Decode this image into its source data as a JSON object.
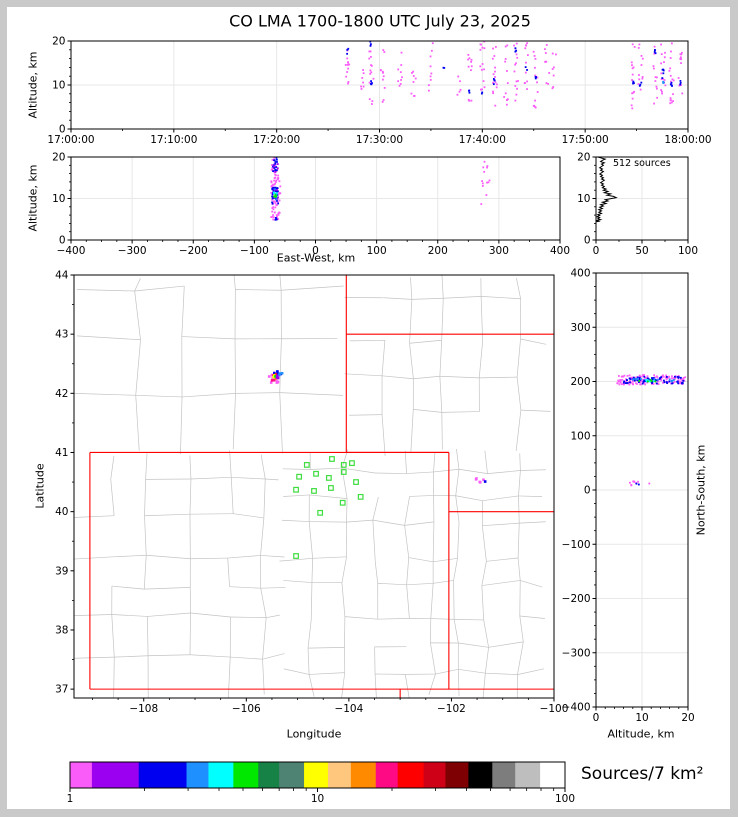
{
  "labels": {
    "title": "CO LMA 1700-1800 UTC July 23, 2025",
    "altitude": "Altitude, km",
    "east_west": "East-West, km",
    "latitude": "Latitude",
    "longitude": "Longitude",
    "north_south": "North-South, km",
    "annotation": "512 sources",
    "colorbar": "Sources/7 km²"
  },
  "palette": {
    "violet": "#F95CF9",
    "purple": "#9B00F0",
    "blue": "#0000F0",
    "dodger": "#1E90FF",
    "cyan": "#00FFFF",
    "green": "#00E800",
    "seagreen": "#178245",
    "teal": "#4E8273",
    "yellow": "#FFFF00",
    "sandy": "#FFC77E",
    "orange": "#FF8A00",
    "deeppink": "#FF0A85",
    "red": "#FF0000",
    "crimson": "#CE0018",
    "darkred": "#7E0002",
    "black": "#000000",
    "gray": "#7D7D7D",
    "silver": "#BEBEBE",
    "white": "#FFFFFF",
    "station": "#3FDD3F",
    "state_border": "#FF0000",
    "county_line": "#C3C3C3",
    "gridline": "#E7E7E7",
    "histogram_line": "#000000"
  },
  "colorbar": {
    "label": "Sources/7 km²",
    "scale": "log",
    "range": [
      1,
      100
    ],
    "tick_values": [
      1,
      10,
      100
    ],
    "tick_labels": [
      "1",
      "10",
      "100"
    ],
    "minor_values": [
      2,
      3,
      4,
      5,
      6,
      7,
      8,
      9,
      20,
      30,
      40,
      50,
      60,
      70,
      80,
      90
    ],
    "segments": [
      {
        "color": "violet",
        "w": 22
      },
      {
        "color": "purple",
        "w": 47
      },
      {
        "color": "blue",
        "w": 48
      },
      {
        "color": "dodger",
        "w": 22
      },
      {
        "color": "cyan",
        "w": 25
      },
      {
        "color": "green",
        "w": 25
      },
      {
        "color": "seagreen",
        "w": 21
      },
      {
        "color": "teal",
        "w": 25
      },
      {
        "color": "yellow",
        "w": 24
      },
      {
        "color": "sandy",
        "w": 23
      },
      {
        "color": "orange",
        "w": 25
      },
      {
        "color": "deeppink",
        "w": 22
      },
      {
        "color": "red",
        "w": 26
      },
      {
        "color": "crimson",
        "w": 22
      },
      {
        "color": "darkred",
        "w": 23
      },
      {
        "color": "black",
        "w": 24
      },
      {
        "color": "gray",
        "w": 23
      },
      {
        "color": "silver",
        "w": 25
      },
      {
        "color": "white",
        "w": 25
      }
    ]
  },
  "chart_data": [
    {
      "id": "time_altitude",
      "type": "scatter",
      "seed": 11,
      "ylabel": "Altitude, km",
      "xlim": [
        0,
        60
      ],
      "ylim": [
        0,
        20
      ],
      "xtick_values": [
        0,
        10,
        20,
        30,
        40,
        50,
        60
      ],
      "xtick_labels": [
        "17:00:00",
        "17:10:00",
        "17:20:00",
        "17:30:00",
        "17:40:00",
        "17:50:00",
        "18:00:00"
      ],
      "ytick_values": [
        0,
        10,
        20
      ],
      "ytick_labels": [
        "0",
        "10",
        "20"
      ],
      "x_minor": 5,
      "y_minor": 2,
      "grid_x": [
        10,
        20,
        30,
        40,
        50
      ],
      "grid_y": [
        10
      ],
      "clusters": [
        [
          26.9,
          0.22,
          9,
          19.5,
          13,
          "violet"
        ],
        [
          26.9,
          0.1,
          17,
          18.6,
          3,
          "blue"
        ],
        [
          28.3,
          0.22,
          9,
          13.5,
          7,
          "violet"
        ],
        [
          29.2,
          0.22,
          5,
          20,
          16,
          "violet"
        ],
        [
          29.2,
          0.1,
          9.5,
          11,
          4,
          "blue"
        ],
        [
          29.2,
          0.1,
          18.8,
          20,
          3,
          "blue"
        ],
        [
          30.3,
          0.22,
          4.8,
          18,
          11,
          "violet"
        ],
        [
          32.0,
          0.22,
          8,
          18,
          9,
          "violet"
        ],
        [
          33.3,
          0.22,
          7.5,
          14,
          8,
          "violet"
        ],
        [
          35.0,
          0.22,
          8,
          19.7,
          9,
          "violet"
        ],
        [
          36.2,
          0.1,
          13.7,
          14.3,
          2,
          "blue"
        ],
        [
          37.8,
          0.22,
          7,
          13,
          5,
          "violet"
        ],
        [
          38.8,
          0.22,
          5,
          19.5,
          11,
          "violet"
        ],
        [
          38.8,
          0.1,
          8,
          9.2,
          3,
          "blue"
        ],
        [
          40.0,
          0.22,
          7.8,
          20,
          14,
          "violet"
        ],
        [
          40.0,
          0.1,
          8,
          8.8,
          2,
          "blue"
        ],
        [
          41.2,
          0.22,
          5,
          19.8,
          16,
          "violet"
        ],
        [
          41.2,
          0.1,
          10,
          11.5,
          4,
          "blue"
        ],
        [
          42.3,
          0.22,
          4.8,
          19.5,
          12,
          "violet"
        ],
        [
          43.3,
          0.22,
          5,
          19.8,
          14,
          "violet"
        ],
        [
          43.3,
          0.1,
          17.5,
          19,
          3,
          "blue"
        ],
        [
          44.3,
          0.22,
          9,
          20,
          11,
          "violet"
        ],
        [
          44.3,
          0.1,
          13.4,
          14.2,
          2,
          "blue"
        ],
        [
          45.2,
          0.22,
          4.8,
          19.5,
          13,
          "violet"
        ],
        [
          45.2,
          0.1,
          11,
          12.2,
          3,
          "blue"
        ],
        [
          46.3,
          0.22,
          8,
          19.5,
          9,
          "violet"
        ],
        [
          47.0,
          0.22,
          9,
          18,
          7,
          "violet"
        ],
        [
          54.7,
          0.22,
          4.5,
          19.7,
          14,
          "violet"
        ],
        [
          54.7,
          0.1,
          9,
          11,
          4,
          "blue"
        ],
        [
          55.4,
          0.22,
          8.5,
          20,
          11,
          "violet"
        ],
        [
          55.4,
          0.1,
          9.5,
          10.6,
          3,
          "blue"
        ],
        [
          56.8,
          0.22,
          5,
          19.5,
          11,
          "violet"
        ],
        [
          56.8,
          0.1,
          17,
          19.2,
          4,
          "blue"
        ],
        [
          57.6,
          0.22,
          8,
          20,
          14,
          "violet"
        ],
        [
          57.6,
          0.1,
          10,
          14,
          6,
          "blue"
        ],
        [
          57.6,
          0.08,
          10.3,
          11,
          2,
          "dodger"
        ],
        [
          58.4,
          0.22,
          4.7,
          19.8,
          16,
          "violet"
        ],
        [
          58.4,
          0.1,
          9,
          10.6,
          4,
          "blue"
        ],
        [
          59.3,
          0.22,
          8,
          20,
          12,
          "violet"
        ],
        [
          59.3,
          0.1,
          10,
          11.2,
          3,
          "blue"
        ]
      ]
    },
    {
      "id": "east_west_altitude",
      "type": "scatter",
      "seed": 22,
      "xlabel": "East-West, km",
      "ylabel": "Altitude, km",
      "xlim": [
        -400,
        400
      ],
      "ylim": [
        0,
        20
      ],
      "xtick_values": [
        -400,
        -300,
        -200,
        -100,
        0,
        100,
        200,
        300,
        400
      ],
      "xtick_labels": [
        "−400",
        "−300",
        "−200",
        "−100",
        "0",
        "100",
        "200",
        "300",
        "400"
      ],
      "ytick_values": [
        0,
        10,
        20
      ],
      "ytick_labels": [
        "0",
        "10",
        "20"
      ],
      "x_minor": 25,
      "y_minor": 2,
      "grid_x": [
        -300,
        -200,
        -100,
        0,
        100,
        200,
        300
      ],
      "grid_y": [
        10
      ],
      "clusters": [
        [
          -65,
          7.5,
          4.8,
          20,
          95,
          "violet"
        ],
        [
          -66,
          5,
          8.5,
          13,
          30,
          "blue"
        ],
        [
          -66,
          4,
          16.5,
          20,
          15,
          "blue"
        ],
        [
          -64,
          3,
          4.7,
          5.6,
          4,
          "blue"
        ],
        [
          -66,
          5,
          9,
          19,
          10,
          "purple"
        ],
        [
          -65,
          4,
          9.5,
          12.5,
          6,
          "dodger"
        ],
        [
          -66,
          3,
          10,
          11.6,
          5,
          "cyan"
        ],
        [
          -66,
          2,
          10.2,
          11.2,
          4,
          "green"
        ],
        [
          278,
          7,
          8.3,
          19,
          13,
          "violet"
        ]
      ]
    },
    {
      "id": "source_histogram",
      "type": "line",
      "seed": 33,
      "annotation": "512 sources",
      "xlim": [
        0,
        100
      ],
      "ylim": [
        0,
        20
      ],
      "xtick_values": [
        0,
        50,
        100
      ],
      "xtick_labels": [
        "0",
        "50",
        "100"
      ],
      "ytick_values": [
        0,
        10,
        20
      ],
      "ytick_labels": [
        "0",
        "10",
        "20"
      ],
      "x_minor": 25,
      "y_minor": 2,
      "grid_x": [
        50
      ],
      "grid_y": [
        10
      ],
      "profile": [
        [
          4.4,
          0
        ],
        [
          4.5,
          3
        ],
        [
          4.7,
          1
        ],
        [
          4.9,
          5
        ],
        [
          5.1,
          2
        ],
        [
          5.4,
          4
        ],
        [
          5.6,
          1
        ],
        [
          5.9,
          4
        ],
        [
          6.1,
          2
        ],
        [
          6.4,
          6
        ],
        [
          6.7,
          3
        ],
        [
          7.0,
          6
        ],
        [
          7.3,
          3
        ],
        [
          7.6,
          7
        ],
        [
          7.9,
          4
        ],
        [
          8.2,
          8
        ],
        [
          8.5,
          5
        ],
        [
          8.8,
          11
        ],
        [
          9.1,
          7
        ],
        [
          9.4,
          13
        ],
        [
          9.7,
          10
        ],
        [
          10.0,
          17
        ],
        [
          10.2,
          22
        ],
        [
          10.5,
          19
        ],
        [
          10.8,
          12
        ],
        [
          11.1,
          16
        ],
        [
          11.4,
          9
        ],
        [
          11.7,
          13
        ],
        [
          12.0,
          8
        ],
        [
          12.3,
          11
        ],
        [
          12.6,
          7
        ],
        [
          12.9,
          9
        ],
        [
          13.2,
          6
        ],
        [
          13.5,
          8
        ],
        [
          13.8,
          5
        ],
        [
          14.1,
          7
        ],
        [
          14.4,
          9
        ],
        [
          14.7,
          6
        ],
        [
          15.0,
          8
        ],
        [
          15.3,
          5
        ],
        [
          15.6,
          7
        ],
        [
          15.9,
          4
        ],
        [
          16.2,
          6
        ],
        [
          16.5,
          8
        ],
        [
          16.8,
          5
        ],
        [
          17.1,
          7
        ],
        [
          17.4,
          4
        ],
        [
          17.7,
          6
        ],
        [
          18.0,
          8
        ],
        [
          18.3,
          6
        ],
        [
          18.6,
          9
        ],
        [
          18.9,
          5
        ],
        [
          19.2,
          7
        ],
        [
          19.5,
          10
        ],
        [
          19.8,
          5
        ],
        [
          20.0,
          2
        ]
      ]
    },
    {
      "id": "map",
      "type": "map-scatter",
      "seed": 44,
      "xlabel": "Longitude",
      "ylabel": "Latitude",
      "xlim": [
        -109.36,
        -100
      ],
      "ylim": [
        36.85,
        44
      ],
      "xtick_values": [
        -108,
        -106,
        -104,
        -102,
        -100
      ],
      "xtick_labels": [
        "−108",
        "−106",
        "−104",
        "−102",
        "−100"
      ],
      "ytick_values": [
        37,
        38,
        39,
        40,
        41,
        42,
        43,
        44
      ],
      "ytick_labels": [
        "37",
        "38",
        "39",
        "40",
        "41",
        "42",
        "43",
        "44"
      ],
      "x_minor": 0.5,
      "y_minor": 0.5,
      "state_borders": [
        [
          -109.05,
          37,
          -109.05,
          41
        ],
        [
          -109.05,
          41,
          -102.05,
          41
        ],
        [
          -102.05,
          41,
          -102.05,
          37
        ],
        [
          -109.05,
          37,
          -100,
          37
        ],
        [
          -104.05,
          44,
          -104.05,
          41
        ],
        [
          -104.05,
          41,
          -102.05,
          41
        ],
        [
          -104.05,
          43,
          -100,
          43
        ],
        [
          -102.05,
          40,
          -100,
          40
        ],
        [
          -103.0,
          37,
          -103.0,
          36.85
        ]
      ],
      "stations": [
        [
          -104.33,
          40.89
        ],
        [
          -104.1,
          40.79
        ],
        [
          -103.94,
          40.82
        ],
        [
          -104.82,
          40.79
        ],
        [
          -104.1,
          40.67
        ],
        [
          -104.97,
          40.59
        ],
        [
          -104.64,
          40.64
        ],
        [
          -104.39,
          40.57
        ],
        [
          -103.86,
          40.5
        ],
        [
          -105.03,
          40.37
        ],
        [
          -104.68,
          40.35
        ],
        [
          -104.35,
          40.4
        ],
        [
          -103.77,
          40.25
        ],
        [
          -104.12,
          40.15
        ],
        [
          -104.56,
          39.98
        ],
        [
          -105.03,
          39.25
        ]
      ],
      "clusters": [
        [
          -105.47,
          0.1,
          42.18,
          42.31,
          13,
          "violet"
        ],
        [
          -105.38,
          0.08,
          42.3,
          42.37,
          8,
          "blue"
        ],
        [
          -105.45,
          0.035,
          42.26,
          42.32,
          3,
          "red"
        ],
        [
          -105.43,
          0.02,
          42.24,
          42.28,
          2,
          "orange"
        ],
        [
          -105.46,
          0.02,
          42.27,
          42.31,
          2,
          "yellow"
        ],
        [
          -105.48,
          0.03,
          42.21,
          42.26,
          2,
          "deeppink"
        ],
        [
          -105.44,
          0.012,
          42.28,
          42.3,
          1,
          "green"
        ],
        [
          -105.33,
          0.03,
          42.3,
          42.34,
          3,
          "dodger"
        ],
        [
          -105.41,
          0.04,
          42.25,
          42.31,
          3,
          "purple"
        ],
        [
          -101.45,
          0.1,
          40.49,
          40.57,
          5,
          "violet"
        ],
        [
          -101.33,
          0.02,
          40.5,
          40.53,
          1,
          "blue"
        ]
      ]
    },
    {
      "id": "altitude_north_south",
      "type": "scatter",
      "seed": 55,
      "xlabel": "Altitude, km",
      "ylabel": "North-South, km",
      "xlim": [
        0,
        20
      ],
      "ylim": [
        -400,
        400
      ],
      "xtick_values": [
        0,
        10,
        20
      ],
      "xtick_labels": [
        "0",
        "10",
        "20"
      ],
      "ytick_values": [
        400,
        300,
        200,
        100,
        0,
        -100,
        -200,
        -300,
        -400
      ],
      "ytick_labels": [
        "400",
        "300",
        "200",
        "100",
        "0",
        "−100",
        "−200",
        "−300",
        "−400"
      ],
      "x_minor": 2,
      "y_minor": 25,
      "grid_x": [
        10
      ],
      "grid_y": [
        -300,
        -200,
        -100,
        0,
        100,
        200,
        300
      ],
      "clusters": [
        [
          12,
          7.6,
          194,
          212,
          130,
          "violet"
        ],
        [
          12.5,
          6.5,
          196,
          209,
          65,
          "blue"
        ],
        [
          12,
          5,
          199,
          206,
          12,
          "dodger"
        ],
        [
          11,
          2,
          200,
          205,
          6,
          "cyan"
        ],
        [
          11,
          2,
          200,
          204,
          5,
          "green"
        ],
        [
          8.5,
          3.5,
          8,
          16,
          9,
          "violet"
        ],
        [
          9,
          1.2,
          10,
          12,
          2,
          "blue"
        ]
      ]
    }
  ]
}
